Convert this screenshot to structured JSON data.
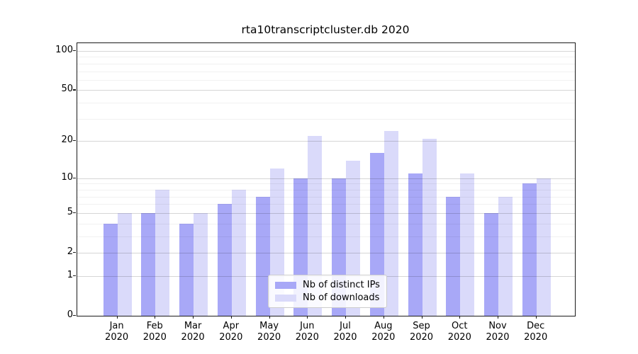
{
  "title": "rta10transcriptcluster.db 2020",
  "chart_data": {
    "type": "bar",
    "categories": [
      "Jan",
      "Feb",
      "Mar",
      "Apr",
      "May",
      "Jun",
      "Jul",
      "Aug",
      "Sep",
      "Oct",
      "Nov",
      "Dec"
    ],
    "year": "2020",
    "series": [
      {
        "name": "Nb of distinct IPs",
        "color": "#a8a8f7",
        "values": [
          4,
          5,
          4,
          6,
          7,
          10,
          10,
          16,
          11,
          7,
          5,
          9
        ]
      },
      {
        "name": "Nb of downloads",
        "color": "#dadafa",
        "values": [
          5,
          8,
          5,
          8,
          12,
          22,
          14,
          24,
          21,
          11,
          7,
          10
        ]
      }
    ],
    "y_axis": {
      "scale": "log1p",
      "major_ticks": [
        0,
        1,
        2,
        5,
        10,
        20,
        50,
        100
      ],
      "minor_ticks": [
        3,
        4,
        6,
        7,
        8,
        9,
        30,
        40,
        60,
        70,
        80,
        90
      ],
      "ylim": [
        0,
        115
      ]
    },
    "xlabel": "",
    "ylabel": "",
    "grid": true,
    "legend_position": "bottom-center"
  }
}
